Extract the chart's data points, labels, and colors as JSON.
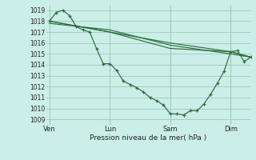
{
  "bg_color": "#cceee8",
  "grid_color": "#99ccbb",
  "line_color": "#2d6e3a",
  "marker_color": "#2d6e3a",
  "xlabel": "Pression niveau de la mer( hPa )",
  "ylim": [
    1008.5,
    1019.5
  ],
  "yticks": [
    1009,
    1010,
    1011,
    1012,
    1013,
    1014,
    1015,
    1016,
    1017,
    1018,
    1019
  ],
  "xtick_labels": [
    "Ven",
    "Lun",
    "Sam",
    "Dim"
  ],
  "xtick_positions": [
    0,
    36,
    72,
    108
  ],
  "vline_positions": [
    0,
    36,
    72,
    108
  ],
  "xlim": [
    -2,
    120
  ],
  "series1_x": [
    0,
    4,
    8,
    12,
    16,
    20,
    24,
    28,
    32,
    36,
    40,
    44,
    48,
    52,
    56,
    60,
    64,
    68,
    72,
    76,
    80,
    84,
    88,
    92,
    96,
    100,
    104,
    108,
    112,
    116,
    120
  ],
  "series1_y": [
    1018.0,
    1018.8,
    1019.0,
    1018.5,
    1017.5,
    1017.2,
    1017.0,
    1015.5,
    1014.1,
    1014.1,
    1013.5,
    1012.5,
    1012.2,
    1011.9,
    1011.5,
    1011.0,
    1010.7,
    1010.3,
    1009.5,
    1009.5,
    1009.4,
    1009.8,
    1009.8,
    1010.4,
    1011.3,
    1012.3,
    1013.4,
    1015.2,
    1015.3,
    1014.3,
    1014.7
  ],
  "series2_x": [
    0,
    36,
    72,
    108,
    120
  ],
  "series2_y": [
    1018.0,
    1017.0,
    1016.0,
    1015.2,
    1014.7
  ],
  "series3_x": [
    0,
    36,
    72,
    108,
    120
  ],
  "series3_y": [
    1017.8,
    1017.2,
    1015.8,
    1015.0,
    1014.7
  ],
  "series4_x": [
    0,
    36,
    72,
    108,
    120
  ],
  "series4_y": [
    1018.0,
    1017.0,
    1015.5,
    1015.2,
    1014.7
  ]
}
